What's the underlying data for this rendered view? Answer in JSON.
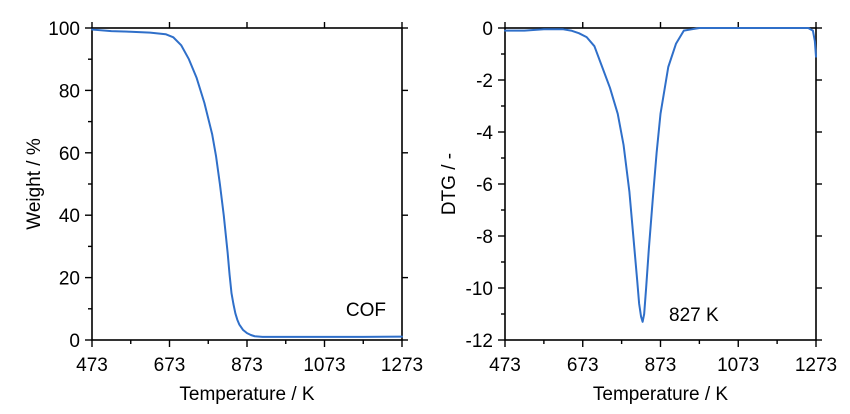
{
  "chart_data": [
    {
      "type": "line",
      "xlabel": "Temperature / K",
      "ylabel": "Weight / %",
      "xlim": [
        473,
        1273
      ],
      "ylim": [
        0,
        100
      ],
      "xticks": [
        473,
        673,
        873,
        1073,
        1273
      ],
      "yticks": [
        0,
        20,
        40,
        60,
        80,
        100
      ],
      "grid": false,
      "line_color": "#2f6fc9",
      "annotations": [
        {
          "text": "COF",
          "x": 1180,
          "y": 10
        }
      ],
      "series": [
        {
          "x": [
            473,
            523,
            573,
            623,
            663,
            683,
            703,
            723,
            743,
            763,
            783,
            793,
            803,
            813,
            823,
            828,
            833,
            838,
            843,
            848,
            853,
            863,
            873,
            883,
            893,
            913,
            933,
            973,
            1073,
            1173,
            1273
          ],
          "y": [
            99.5,
            99.0,
            98.8,
            98.5,
            98.0,
            97.0,
            94.5,
            90.0,
            84.0,
            76.0,
            66.0,
            59.0,
            50.0,
            40.0,
            28.0,
            21.0,
            15.0,
            11.5,
            8.5,
            6.5,
            5.0,
            3.2,
            2.2,
            1.6,
            1.2,
            1.0,
            1.0,
            1.0,
            1.0,
            1.0,
            1.1
          ]
        }
      ]
    },
    {
      "type": "line",
      "xlabel": "Temperature / K",
      "ylabel": "DTG / -",
      "xlim": [
        473,
        1273
      ],
      "ylim": [
        -12,
        0
      ],
      "xticks": [
        473,
        673,
        873,
        1073,
        1273
      ],
      "yticks": [
        -12,
        -10,
        -8,
        -6,
        -4,
        -2,
        0
      ],
      "grid": false,
      "line_color": "#2f6fc9",
      "annotations": [
        {
          "text": "827 K",
          "x": 895,
          "y": -11
        }
      ],
      "series": [
        {
          "x": [
            473,
            523,
            573,
            623,
            643,
            663,
            683,
            703,
            723,
            743,
            763,
            778,
            793,
            803,
            813,
            818,
            823,
            827,
            831,
            836,
            843,
            853,
            863,
            873,
            893,
            913,
            933,
            953,
            973,
            1073,
            1173,
            1253,
            1265,
            1270,
            1273
          ],
          "y": [
            -0.1,
            -0.1,
            -0.05,
            -0.05,
            -0.1,
            -0.2,
            -0.35,
            -0.7,
            -1.5,
            -2.3,
            -3.3,
            -4.5,
            -6.3,
            -8.0,
            -9.7,
            -10.6,
            -11.1,
            -11.3,
            -11.0,
            -10.0,
            -8.5,
            -6.6,
            -4.8,
            -3.3,
            -1.5,
            -0.6,
            -0.1,
            -0.05,
            0,
            0,
            0,
            0,
            -0.1,
            -0.5,
            -1.1
          ]
        }
      ]
    }
  ]
}
